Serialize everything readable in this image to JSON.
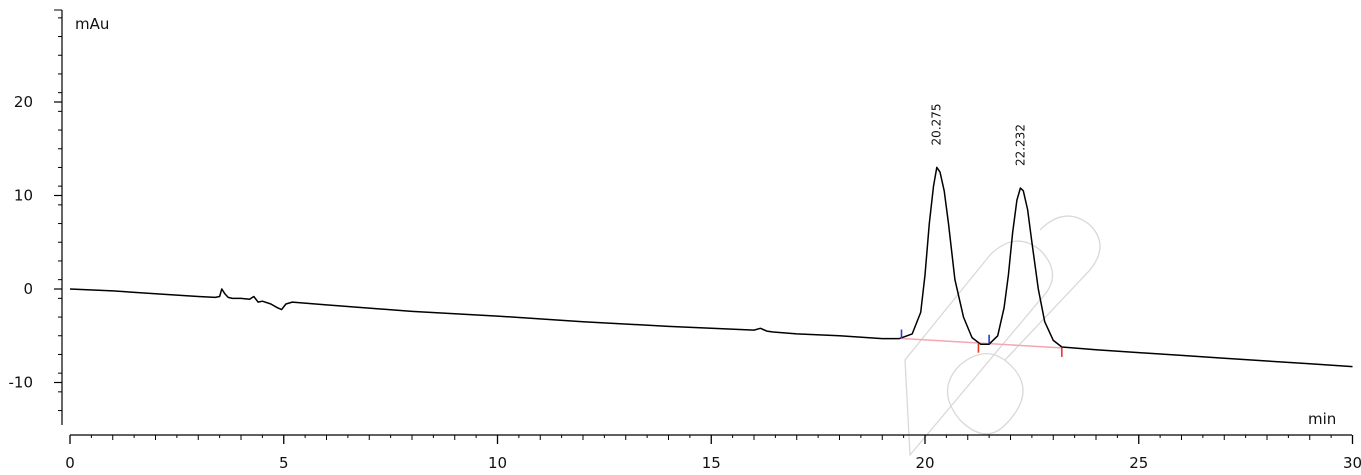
{
  "chart_data": {
    "type": "line",
    "title": "",
    "xlabel": "min",
    "ylabel": "mAu",
    "xlim": [
      0,
      30
    ],
    "ylim": [
      -15,
      30
    ],
    "x_major_ticks": [
      0,
      5,
      10,
      15,
      20,
      25,
      30
    ],
    "x_tick_labels": [
      "0",
      "5",
      "10",
      "15",
      "20",
      "25",
      "30"
    ],
    "y_major_ticks": [
      -10,
      0,
      10,
      20
    ],
    "y_tick_labels": [
      "-10",
      "0",
      "10",
      "20"
    ],
    "grid": false,
    "colors": {
      "trace": "#000000",
      "baseline": "#f4a7b0",
      "peak_start_marker": "#2b3bd6",
      "peak_end_marker": "#e23a2a"
    },
    "series": [
      {
        "x": [
          0,
          1,
          2,
          3,
          3.4,
          3.5,
          3.55,
          3.62,
          3.7,
          3.8,
          4.0,
          4.2,
          4.3,
          4.4,
          4.5,
          4.7,
          4.85,
          4.95,
          5.05,
          5.2,
          6,
          8,
          10,
          12,
          14,
          16,
          16.15,
          16.3,
          16.45,
          17,
          18,
          19,
          19.4,
          19.7,
          19.9,
          20.0,
          20.1,
          20.2,
          20.275,
          20.35,
          20.45,
          20.55,
          20.7,
          20.9,
          21.1,
          21.3,
          21.5,
          21.7,
          21.85,
          21.95,
          22.05,
          22.15,
          22.232,
          22.3,
          22.4,
          22.5,
          22.65,
          22.8,
          23.0,
          23.2,
          24,
          25,
          26,
          27,
          28,
          29,
          30
        ],
        "y": [
          0,
          -0.2,
          -0.5,
          -0.8,
          -0.9,
          -0.8,
          0.0,
          -0.5,
          -0.9,
          -1.0,
          -1.0,
          -1.1,
          -0.8,
          -1.4,
          -1.3,
          -1.6,
          -2.0,
          -2.2,
          -1.6,
          -1.4,
          -1.7,
          -2.4,
          -2.9,
          -3.5,
          -4.0,
          -4.4,
          -4.2,
          -4.5,
          -4.6,
          -4.8,
          -5.0,
          -5.3,
          -5.3,
          -4.8,
          -2.5,
          1.5,
          7.0,
          11.0,
          13.0,
          12.5,
          10.5,
          7.0,
          1.0,
          -3.0,
          -5.2,
          -5.9,
          -5.9,
          -5.0,
          -2.0,
          1.5,
          6.0,
          9.5,
          10.8,
          10.5,
          8.5,
          5.0,
          0.0,
          -3.5,
          -5.5,
          -6.2,
          -6.5,
          -6.8,
          -7.1,
          -7.4,
          -7.7,
          -8.0,
          -8.3
        ]
      }
    ],
    "peaks": [
      {
        "rt": "20.275",
        "x": 20.275,
        "y": 13.0
      },
      {
        "rt": "22.232",
        "x": 22.232,
        "y": 10.8
      }
    ],
    "integration_baselines": [
      {
        "x": [
          19.45,
          23.2
        ],
        "y": [
          -5.3,
          -6.3
        ]
      }
    ],
    "peak_markers": [
      {
        "kind": "start",
        "x": 19.45,
        "y": -5.3
      },
      {
        "kind": "end",
        "x": 21.25,
        "y": -5.85
      },
      {
        "kind": "start",
        "x": 21.5,
        "y": -5.85
      },
      {
        "kind": "end",
        "x": 23.2,
        "y": -6.3
      }
    ]
  }
}
